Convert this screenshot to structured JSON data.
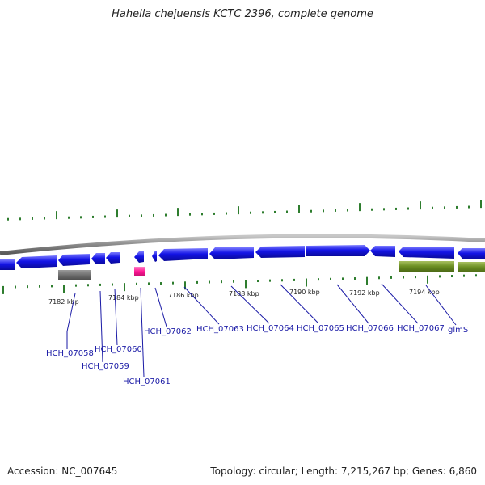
{
  "title": "Hahella chejuensis KCTC 2396, complete genome",
  "accession": "Accession: NC_007645",
  "topology": "Topology: circular; Length: 7,215,267 bp; Genes: 6,860",
  "colors": {
    "backbone": "#8a8a8a",
    "cds": "#1414e6",
    "rna": "#6e6e6e",
    "misc": "#ff1493",
    "gene": "#6b8e23",
    "ticks": "#2e7d2e",
    "label": "#1a1aa6"
  },
  "scale_labels": [
    {
      "text": "7182 kbp",
      "kbp": 7182
    },
    {
      "text": "7184 kbp",
      "kbp": 7184
    },
    {
      "text": "7186 kbp",
      "kbp": 7186
    },
    {
      "text": "7188 kbp",
      "kbp": 7188
    },
    {
      "text": "7190 kbp",
      "kbp": 7190
    },
    {
      "text": "7192 kbp",
      "kbp": 7192
    },
    {
      "text": "7194 kbp",
      "kbp": 7194
    }
  ],
  "gene_labels": [
    "HCH_07058",
    "HCH_07059",
    "HCH_07060",
    "HCH_07061",
    "HCH_07062",
    "HCH_07063",
    "HCH_07064",
    "HCH_07065",
    "HCH_07066",
    "HCH_07067",
    "glmS"
  ]
}
